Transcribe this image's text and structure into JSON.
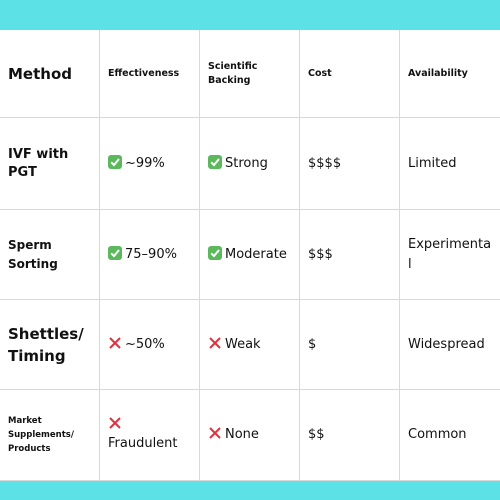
{
  "table": {
    "headers": [
      "Method",
      "Effectiveness",
      "Scientific Backing",
      "Cost",
      "Availability"
    ],
    "rows": [
      [
        "IVF with PGT",
        "~99%",
        "Strong",
        "$$$$",
        "Limited"
      ],
      [
        "Sperm Sorting",
        "75–90%",
        "Moderate",
        "$$$",
        "Experimental"
      ],
      [
        "Shettles/ Timing",
        "~50%",
        "Weak",
        "$",
        "Widespread"
      ],
      [
        "Market Supplements/ Products",
        "Fraudulent",
        "None",
        "$$",
        "Common"
      ]
    ]
  }
}
